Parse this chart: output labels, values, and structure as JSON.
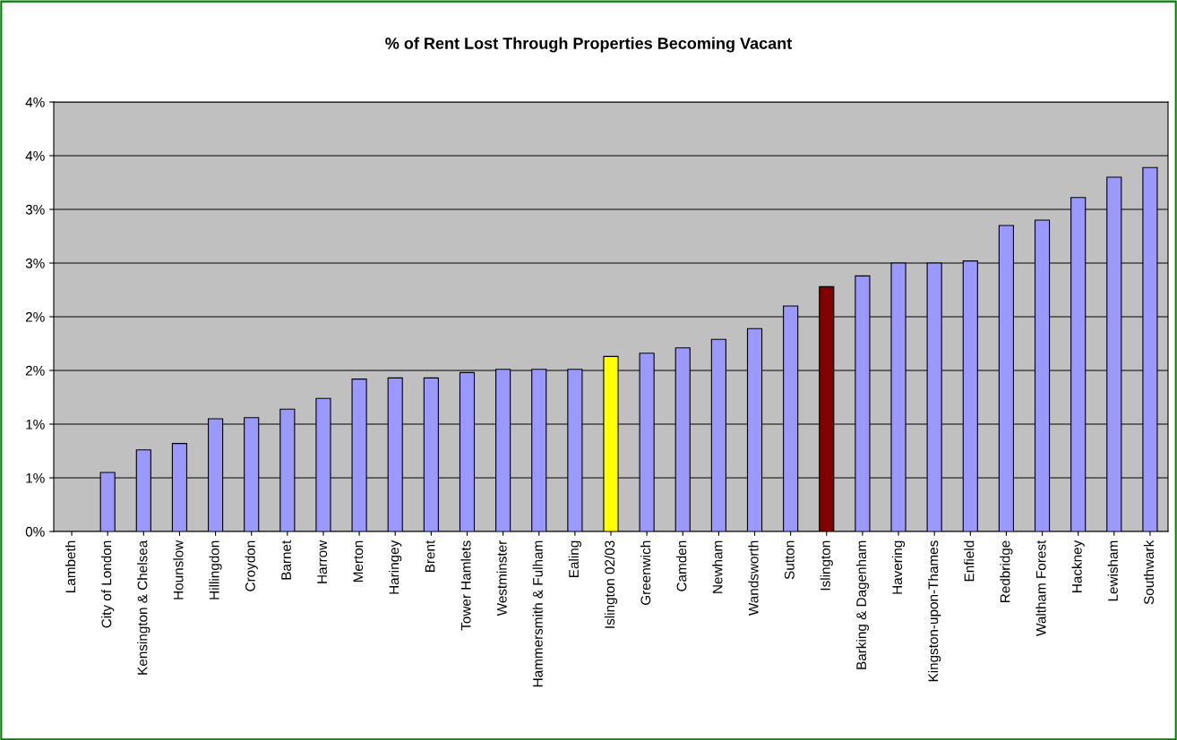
{
  "chart_data": {
    "type": "bar",
    "title": "% of Rent Lost Through Properties Becoming Vacant",
    "categories": [
      "Lambeth",
      "City of London",
      "Kensington & Chelsea",
      "Hounslow",
      "Hillingdon",
      "Croydon",
      "Barnet",
      "Harrow",
      "Merton",
      "Haringey",
      "Brent",
      "Tower Hamlets",
      "Westminster",
      "Hammersmith & Fulham",
      "Ealing",
      "Islington 02/03",
      "Greenwich",
      "Camden",
      "Newham",
      "Wandsworth",
      "Sutton",
      "Islington",
      "Barking & Dagenham",
      "Havering",
      "Kingston-upon-Thames",
      "Enfield",
      "Redbridge",
      "Waltham Forest",
      "Hackney",
      "Lewisham",
      "Southwark"
    ],
    "values": [
      null,
      0.55,
      0.76,
      0.82,
      1.05,
      1.06,
      1.14,
      1.24,
      1.42,
      1.43,
      1.43,
      1.48,
      1.51,
      1.51,
      1.51,
      1.63,
      1.66,
      1.71,
      1.79,
      1.89,
      2.1,
      2.28,
      2.38,
      2.5,
      2.5,
      2.52,
      2.85,
      2.9,
      3.11,
      3.3,
      3.39
    ],
    "colors": [
      "#9999ff",
      "#9999ff",
      "#9999ff",
      "#9999ff",
      "#9999ff",
      "#9999ff",
      "#9999ff",
      "#9999ff",
      "#9999ff",
      "#9999ff",
      "#9999ff",
      "#9999ff",
      "#9999ff",
      "#9999ff",
      "#9999ff",
      "#ffff00",
      "#9999ff",
      "#9999ff",
      "#9999ff",
      "#9999ff",
      "#9999ff",
      "#800000",
      "#9999ff",
      "#9999ff",
      "#9999ff",
      "#9999ff",
      "#9999ff",
      "#9999ff",
      "#9999ff",
      "#9999ff",
      "#9999ff"
    ],
    "ylim": [
      0,
      4
    ],
    "yticks": [
      {
        "value": 0,
        "label": "0%"
      },
      {
        "value": 0.5,
        "label": "1%"
      },
      {
        "value": 1,
        "label": "1%"
      },
      {
        "value": 1.5,
        "label": "2%"
      },
      {
        "value": 2,
        "label": "2%"
      },
      {
        "value": 2.5,
        "label": "3%"
      },
      {
        "value": 3,
        "label": "3%"
      },
      {
        "value": 3.5,
        "label": "4%"
      },
      {
        "value": 4,
        "label": "4%"
      }
    ],
    "grid": "y",
    "legend": false
  }
}
